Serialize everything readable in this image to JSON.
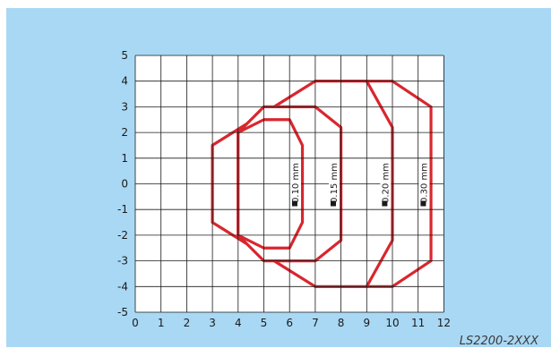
{
  "diagram": {
    "x_ticks": [
      "0",
      "1",
      "2",
      "3",
      "4",
      "5",
      "6",
      "7",
      "8",
      "9",
      "10",
      "11",
      "12"
    ],
    "y_ticks": [
      "5",
      "4",
      "3",
      "2",
      "1",
      "0",
      "-1",
      "-2",
      "-3",
      "-4",
      "-5"
    ],
    "x_range": [
      0,
      12
    ],
    "y_range": [
      -5,
      5
    ],
    "grid": true,
    "colors": {
      "background": "#a9d8f4",
      "plot_area": "#ffffff",
      "grid": "#1a1a1a",
      "zone_outline": "#d9262e",
      "zone_fill": "#ffffff"
    },
    "zones": [
      {
        "label": "0.30 mm",
        "marker_x": 11.2,
        "outline": [
          [
            3,
            1.5
          ],
          [
            7,
            4
          ],
          [
            10,
            4
          ],
          [
            11.5,
            3
          ],
          [
            11.5,
            -3
          ],
          [
            10,
            -4
          ],
          [
            7,
            -4
          ],
          [
            3,
            -1.5
          ]
        ]
      },
      {
        "label": "0.20 mm",
        "marker_x": 9.7,
        "outline": [
          [
            3,
            1.5
          ],
          [
            7,
            4
          ],
          [
            9,
            4
          ],
          [
            10,
            2.2
          ],
          [
            10,
            -2.2
          ],
          [
            9,
            -4
          ],
          [
            7,
            -4
          ],
          [
            3,
            -1.5
          ]
        ]
      },
      {
        "label": "0.15 mm",
        "marker_x": 7.7,
        "outline": [
          [
            4,
            2
          ],
          [
            5,
            3
          ],
          [
            7,
            3
          ],
          [
            8,
            2.2
          ],
          [
            8,
            -2.2
          ],
          [
            7,
            -3
          ],
          [
            5,
            -3
          ],
          [
            4,
            -2
          ]
        ]
      },
      {
        "label": "0.10 mm",
        "marker_x": 6.2,
        "outline": [
          [
            4,
            2
          ],
          [
            5,
            2.5
          ],
          [
            6,
            2.5
          ],
          [
            6.5,
            1.5
          ],
          [
            6.5,
            -1.5
          ],
          [
            6,
            -2.5
          ],
          [
            5,
            -2.5
          ],
          [
            4,
            -2
          ]
        ]
      }
    ]
  },
  "model_code": "LS2200-2XXX"
}
